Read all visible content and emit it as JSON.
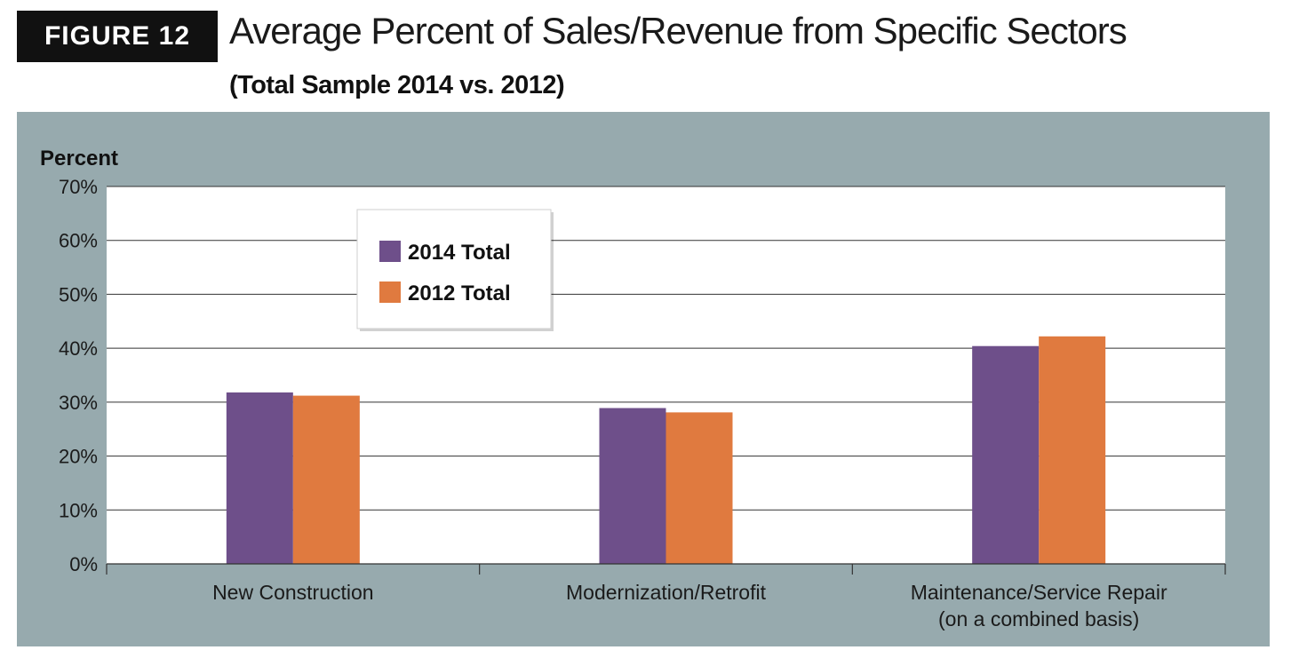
{
  "header": {
    "figure_label": "FIGURE 12",
    "title": "Average Percent of Sales/Revenue from Specific Sectors",
    "subtitle": "(Total Sample 2014 vs. 2012)"
  },
  "colors": {
    "panel": "#97aaae",
    "series_2014": "#6e4f8a",
    "series_2012": "#e07a3f"
  },
  "chart_data": {
    "type": "bar",
    "ylabel": "Percent",
    "ylim": [
      0,
      70
    ],
    "yticks": [
      {
        "value": 0,
        "label": "0%"
      },
      {
        "value": 10,
        "label": "10%"
      },
      {
        "value": 20,
        "label": "20%"
      },
      {
        "value": 30,
        "label": "30%"
      },
      {
        "value": 40,
        "label": "40%"
      },
      {
        "value": 50,
        "label": "50%"
      },
      {
        "value": 60,
        "label": "60%"
      },
      {
        "value": 70,
        "label": "70%"
      }
    ],
    "categories": [
      {
        "line1": "New Construction",
        "line2": ""
      },
      {
        "line1": "Modernization/Retrofit",
        "line2": ""
      },
      {
        "line1": "Maintenance/Service Repair",
        "line2": "(on a combined basis)"
      }
    ],
    "series": [
      {
        "name": "2014 Total",
        "values": [
          31.8,
          28.9,
          40.4
        ]
      },
      {
        "name": "2012 Total",
        "values": [
          31.2,
          28.1,
          42.2
        ]
      }
    ],
    "grid": true,
    "legend": "top-left inside plot"
  }
}
